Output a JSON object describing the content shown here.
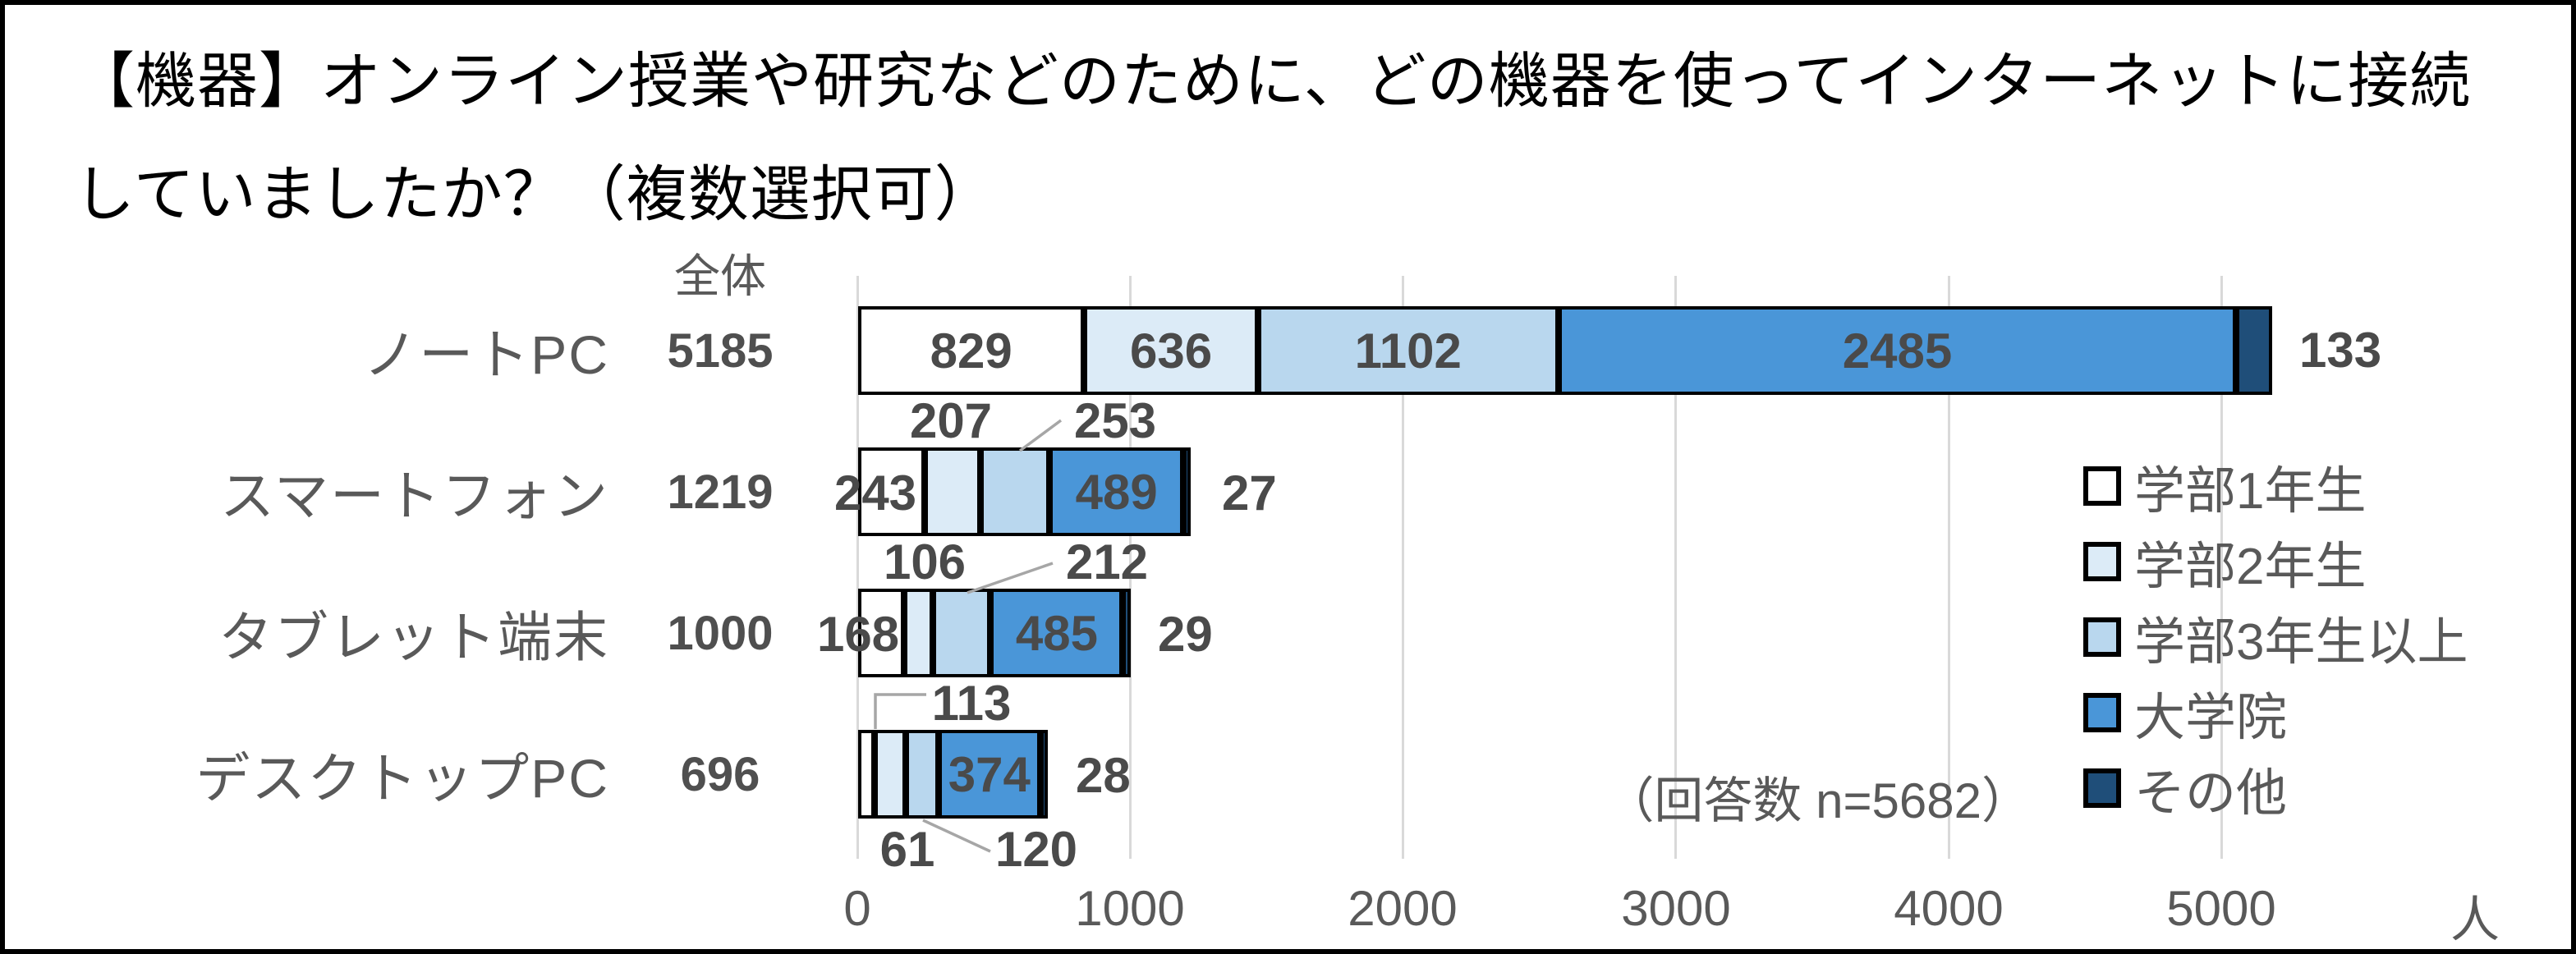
{
  "title": {
    "line1": "【機器】オンライン授業や研究などのために、どの機器を使ってインターネットに接続",
    "line2": "していましたか？（複数選択可）"
  },
  "totals_header": "全体",
  "annotation": "（回答数 n=5682）",
  "x_axis": {
    "ticks": [
      "0",
      "1000",
      "2000",
      "3000",
      "4000",
      "5000"
    ],
    "unit": "人"
  },
  "colors": {
    "bar_border": "#000000",
    "gridline": "#d9d9d9",
    "label_text": "#595959",
    "number_text": "#4a4a4a",
    "leader_line": "#a6a6a6"
  },
  "chart_data": {
    "type": "bar",
    "orientation": "horizontal",
    "stacked": true,
    "title": "【機器】オンライン授業や研究などのために、どの機器を使ってインターネットに接続していましたか？（複数選択可）",
    "categories": [
      "ノートPC",
      "スマートフォン",
      "タブレット端末",
      "デスクトップPC"
    ],
    "totals_label": "全体",
    "totals": [
      5185,
      1219,
      1000,
      696
    ],
    "series": [
      {
        "name": "学部1年生",
        "color": "#ffffff",
        "values": [
          829,
          243,
          168,
          61
        ]
      },
      {
        "name": "学部2年生",
        "color": "#dcebf7",
        "values": [
          636,
          207,
          106,
          113
        ]
      },
      {
        "name": "学部3年生以上",
        "color": "#b9d7ee",
        "values": [
          1102,
          253,
          212,
          120
        ]
      },
      {
        "name": "大学院",
        "color": "#4a96d8",
        "values": [
          2485,
          489,
          485,
          374
        ]
      },
      {
        "name": "その他",
        "color": "#1f4e79",
        "values": [
          133,
          27,
          29,
          28
        ]
      }
    ],
    "x_ticks": [
      0,
      1000,
      2000,
      3000,
      4000,
      5000
    ],
    "x_unit": "人",
    "xlim": [
      0,
      6000
    ],
    "grid": true,
    "legend_position": "right-middle",
    "annotation": "（回答数 n=5682）"
  }
}
